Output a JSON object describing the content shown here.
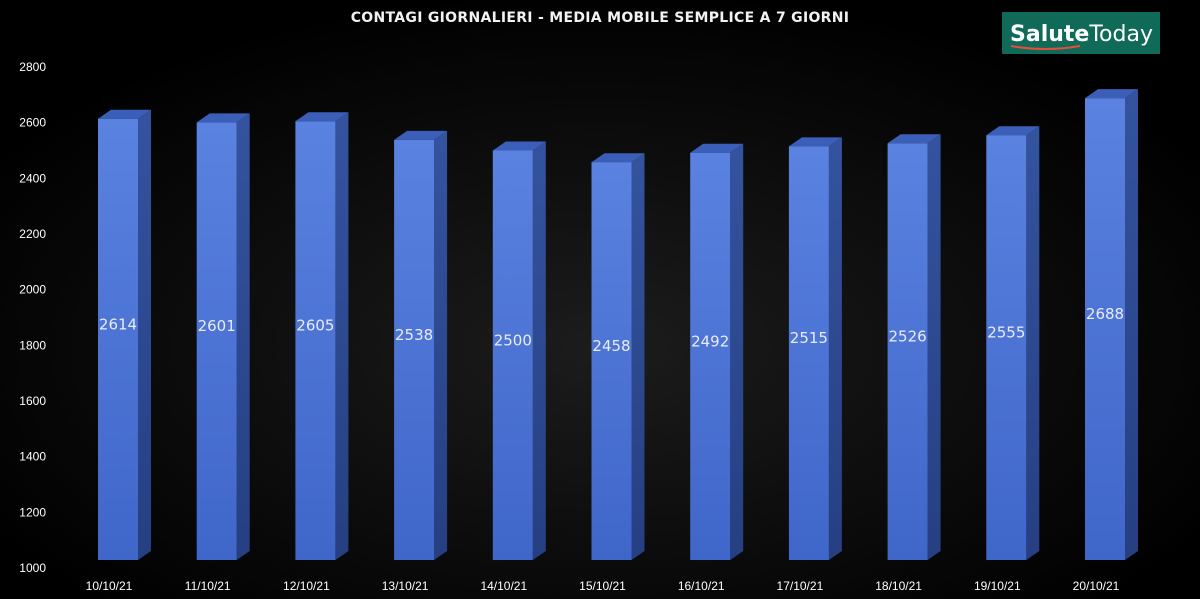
{
  "logo": {
    "part1": "Salute",
    "part2": "Today"
  },
  "colors": {
    "background": "#000000",
    "bar_front": "#4a72d6",
    "bar_side": "#2e4c9a",
    "bar_top": "#3b5eb8",
    "logo_bg": "#0f6b58"
  },
  "chart_data": {
    "type": "bar",
    "title": "CONTAGI GIORNALIERI - MEDIA MOBILE SEMPLICE A 7 GIORNI",
    "xlabel": "",
    "ylabel": "",
    "categories": [
      "10/10/21",
      "11/10/21",
      "12/10/21",
      "13/10/21",
      "14/10/21",
      "15/10/21",
      "16/10/21",
      "17/10/21",
      "18/10/21",
      "19/10/21",
      "20/10/21"
    ],
    "values": [
      2614,
      2601,
      2605,
      2538,
      2500,
      2458,
      2492,
      2515,
      2526,
      2555,
      2688
    ],
    "data_labels": [
      "2614",
      "2601",
      "2605",
      "2538",
      "2500",
      "2458",
      "2492",
      "2515",
      "2526",
      "2555",
      "2688"
    ],
    "ylim": [
      1000,
      2800
    ],
    "yticks": [
      1000,
      1200,
      1400,
      1600,
      1800,
      2000,
      2200,
      2400,
      2600,
      2800
    ],
    "grid": false,
    "legend": "none",
    "style": "3d-column"
  }
}
